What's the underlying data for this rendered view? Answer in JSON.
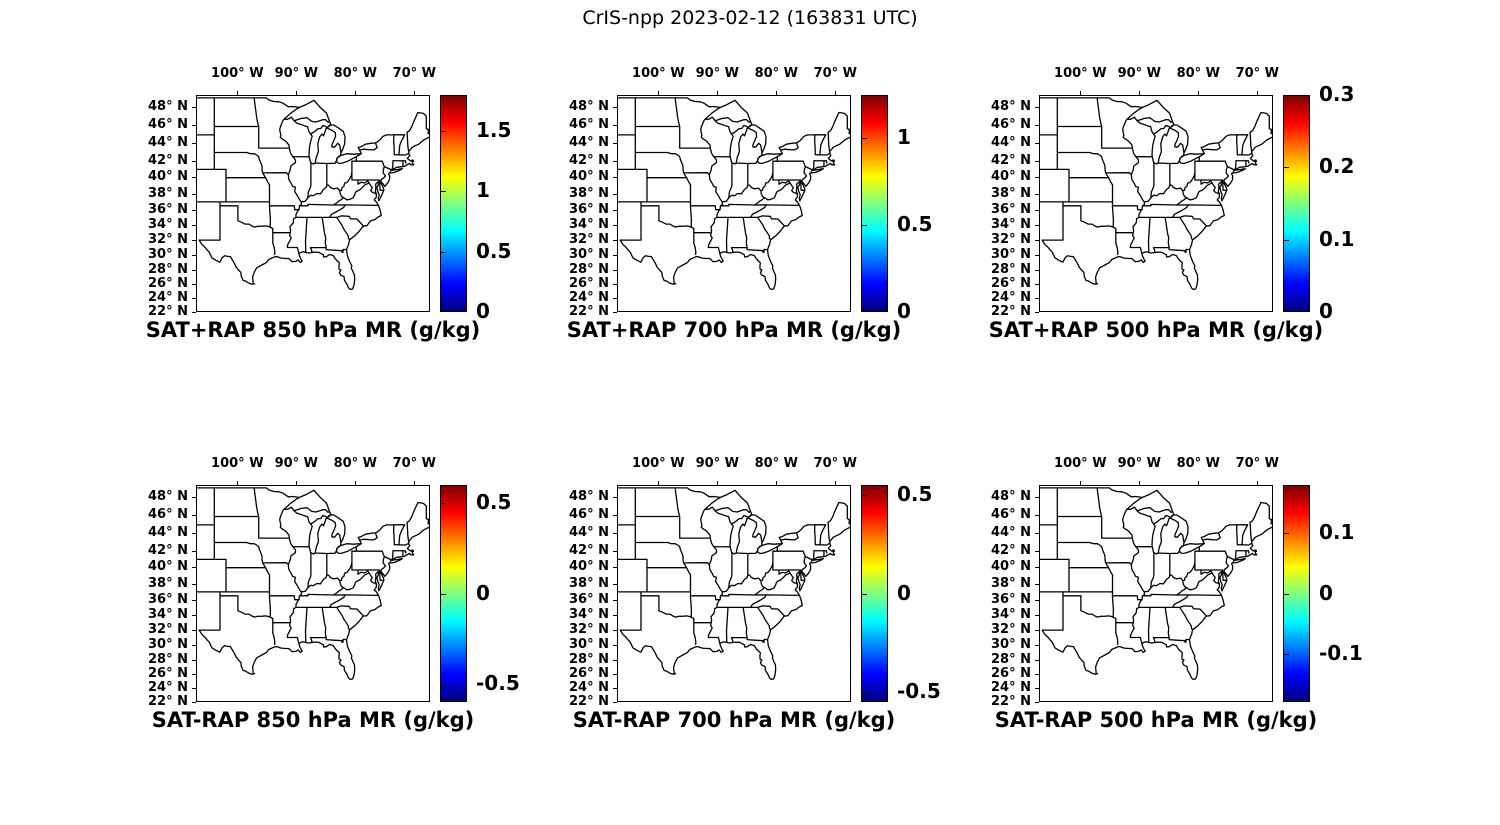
{
  "figure_title": "CrIS-npp 2023-02-12 (163831 UTC)",
  "chart_data": {
    "type": "map-grid",
    "description": "2x3 grid of identical eastern-US state-outline maps (Mercator projection). Each panel has longitude ticks on top, latitude ticks on left, and a vertical jet colorbar on the right. No gridded data field is plotted (map interiors are white).",
    "projection": "mercator",
    "map_lon_west_range": [
      107,
      67.3
    ],
    "map_lat_north_range": [
      22,
      49.2
    ],
    "x_tick_labels": [
      "100° W",
      "90° W",
      "80° W",
      "70° W"
    ],
    "x_tick_lons_w": [
      100,
      90,
      80,
      70
    ],
    "y_tick_labels": [
      "48° N",
      "46° N",
      "44° N",
      "42° N",
      "40° N",
      "38° N",
      "36° N",
      "34° N",
      "32° N",
      "30° N",
      "28° N",
      "26° N",
      "24° N",
      "22° N"
    ],
    "y_tick_lats_n": [
      48,
      46,
      44,
      42,
      40,
      38,
      36,
      34,
      32,
      30,
      28,
      26,
      24,
      22
    ],
    "colormap": "jet",
    "colormap_stops": [
      "#00007F",
      "#0000FF",
      "#00FFFF",
      "#7FFF7F",
      "#FFFF00",
      "#FF0000",
      "#7F0000"
    ],
    "legend_position": "right-of-each-panel",
    "grid": false,
    "panels": [
      {
        "title": "SAT+RAP 850 hPa MR (g/kg)",
        "colorbar": {
          "min": 0,
          "max": 1.8,
          "ticks": [
            "1.5",
            "1",
            "0.5",
            "0"
          ],
          "tick_values": [
            1.5,
            1,
            0.5,
            0
          ]
        }
      },
      {
        "title": "SAT+RAP 700 hPa MR (g/kg)",
        "colorbar": {
          "min": 0,
          "max": 1.25,
          "ticks": [
            "1",
            "0.5",
            "0"
          ],
          "tick_values": [
            1,
            0.5,
            0
          ]
        }
      },
      {
        "title": "SAT+RAP 500 hPa MR (g/kg)",
        "colorbar": {
          "min": 0,
          "max": 0.3,
          "ticks": [
            "0.3",
            "0.2",
            "0.1",
            "0"
          ],
          "tick_values": [
            0.3,
            0.2,
            0.1,
            0
          ]
        }
      },
      {
        "title": "SAT-RAP 850 hPa MR (g/kg)",
        "colorbar": {
          "min": -0.6,
          "max": 0.6,
          "ticks": [
            "0.5",
            "0",
            "-0.5"
          ],
          "tick_values": [
            0.5,
            0,
            -0.5
          ]
        }
      },
      {
        "title": "SAT-RAP 700 hPa MR (g/kg)",
        "colorbar": {
          "min": -0.55,
          "max": 0.55,
          "ticks": [
            "0.5",
            "0",
            "-0.5"
          ],
          "tick_values": [
            0.5,
            0,
            -0.5
          ]
        }
      },
      {
        "title": "SAT-RAP 500 hPa MR (g/kg)",
        "colorbar": {
          "min": -0.18,
          "max": 0.18,
          "ticks": [
            "0.1",
            "0",
            "-0.1"
          ],
          "tick_values": [
            0.1,
            0,
            -0.1
          ]
        }
      }
    ]
  }
}
